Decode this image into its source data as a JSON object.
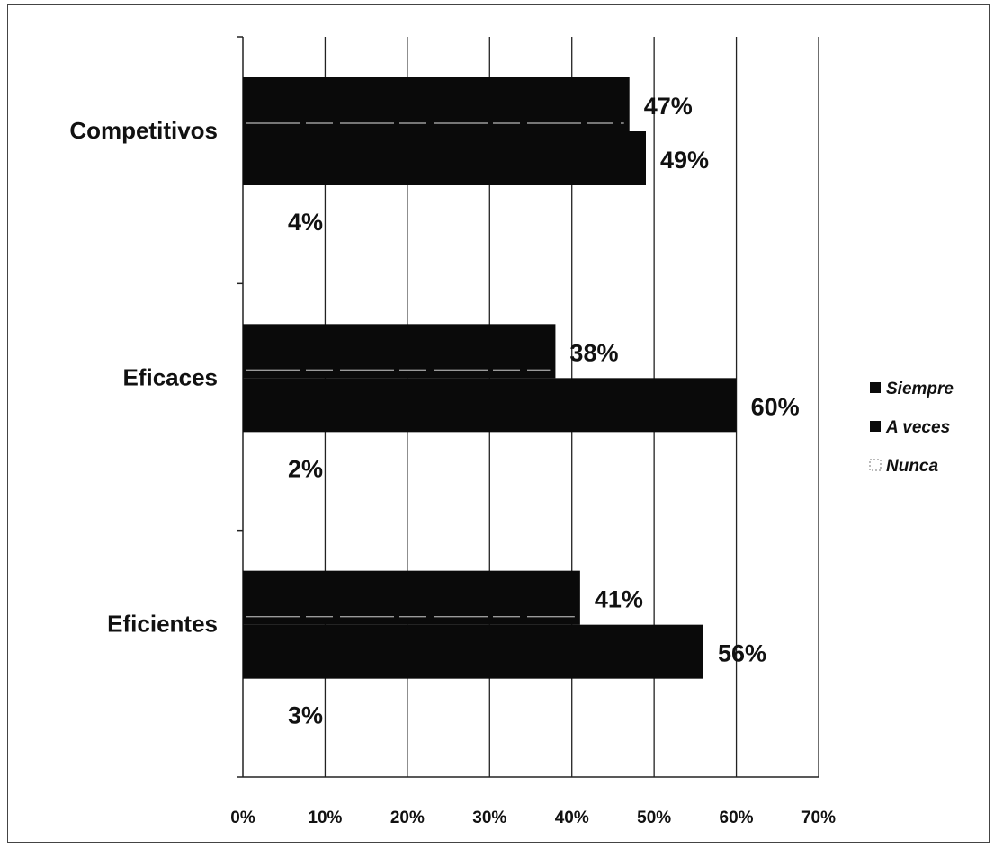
{
  "chart_data": {
    "type": "bar",
    "orientation": "horizontal",
    "categories": [
      "Competitivos",
      "Eficaces",
      "Eficientes"
    ],
    "series": [
      {
        "name": "Siempre",
        "values": [
          47,
          38,
          41
        ],
        "color": "#0a0a0a"
      },
      {
        "name": "A veces",
        "values": [
          49,
          60,
          56
        ],
        "color": "#0a0a0a"
      },
      {
        "name": "Nunca",
        "values": [
          4,
          2,
          3
        ],
        "color": "#ffffff"
      }
    ],
    "data_labels": {
      "Competitivos": [
        "47%",
        "49%",
        "4%"
      ],
      "Eficaces": [
        "38%",
        "60%",
        "2%"
      ],
      "Eficientes": [
        "41%",
        "56%",
        "3%"
      ]
    },
    "xlim": [
      0,
      70
    ],
    "x_ticks": [
      {
        "value": 0,
        "label": "0%"
      },
      {
        "value": 10,
        "label": "10%"
      },
      {
        "value": 20,
        "label": "20%"
      },
      {
        "value": 30,
        "label": "30%"
      },
      {
        "value": 40,
        "label": "40%"
      },
      {
        "value": 50,
        "label": "50%"
      },
      {
        "value": 60,
        "label": "60%"
      },
      {
        "value": 70,
        "label": "70%"
      }
    ],
    "grid": true,
    "legend": {
      "placement": "right",
      "entries": [
        "Siempre",
        "A veces",
        "Nunca"
      ]
    }
  }
}
